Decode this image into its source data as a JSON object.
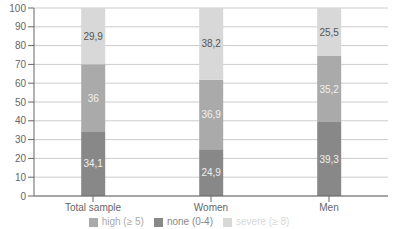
{
  "chart_data": {
    "type": "bar",
    "stacked": true,
    "categories": [
      "Total sample",
      "Women",
      "Men"
    ],
    "series": [
      {
        "name": "none (0-4)",
        "color": "#888888",
        "values": [
          34.1,
          24.9,
          39.3
        ],
        "value_labels": [
          "34,1",
          "24,9",
          "39,3"
        ]
      },
      {
        "name": "high (≥ 5)",
        "color": "#aaaaaa",
        "values": [
          36.0,
          36.9,
          35.2
        ],
        "value_labels": [
          "36",
          "36,9",
          "35,2"
        ]
      },
      {
        "name": "severe (≥ 8)",
        "color": "#d8d8d8",
        "values": [
          29.9,
          38.2,
          25.5
        ],
        "value_labels": [
          "29,9",
          "38,2",
          "25,5"
        ]
      }
    ],
    "ylim": [
      0,
      100
    ],
    "yticks": [
      0,
      10,
      20,
      30,
      40,
      50,
      60,
      70,
      80,
      90,
      100
    ],
    "grid": true,
    "legend": "bottom",
    "data_labels": true
  }
}
